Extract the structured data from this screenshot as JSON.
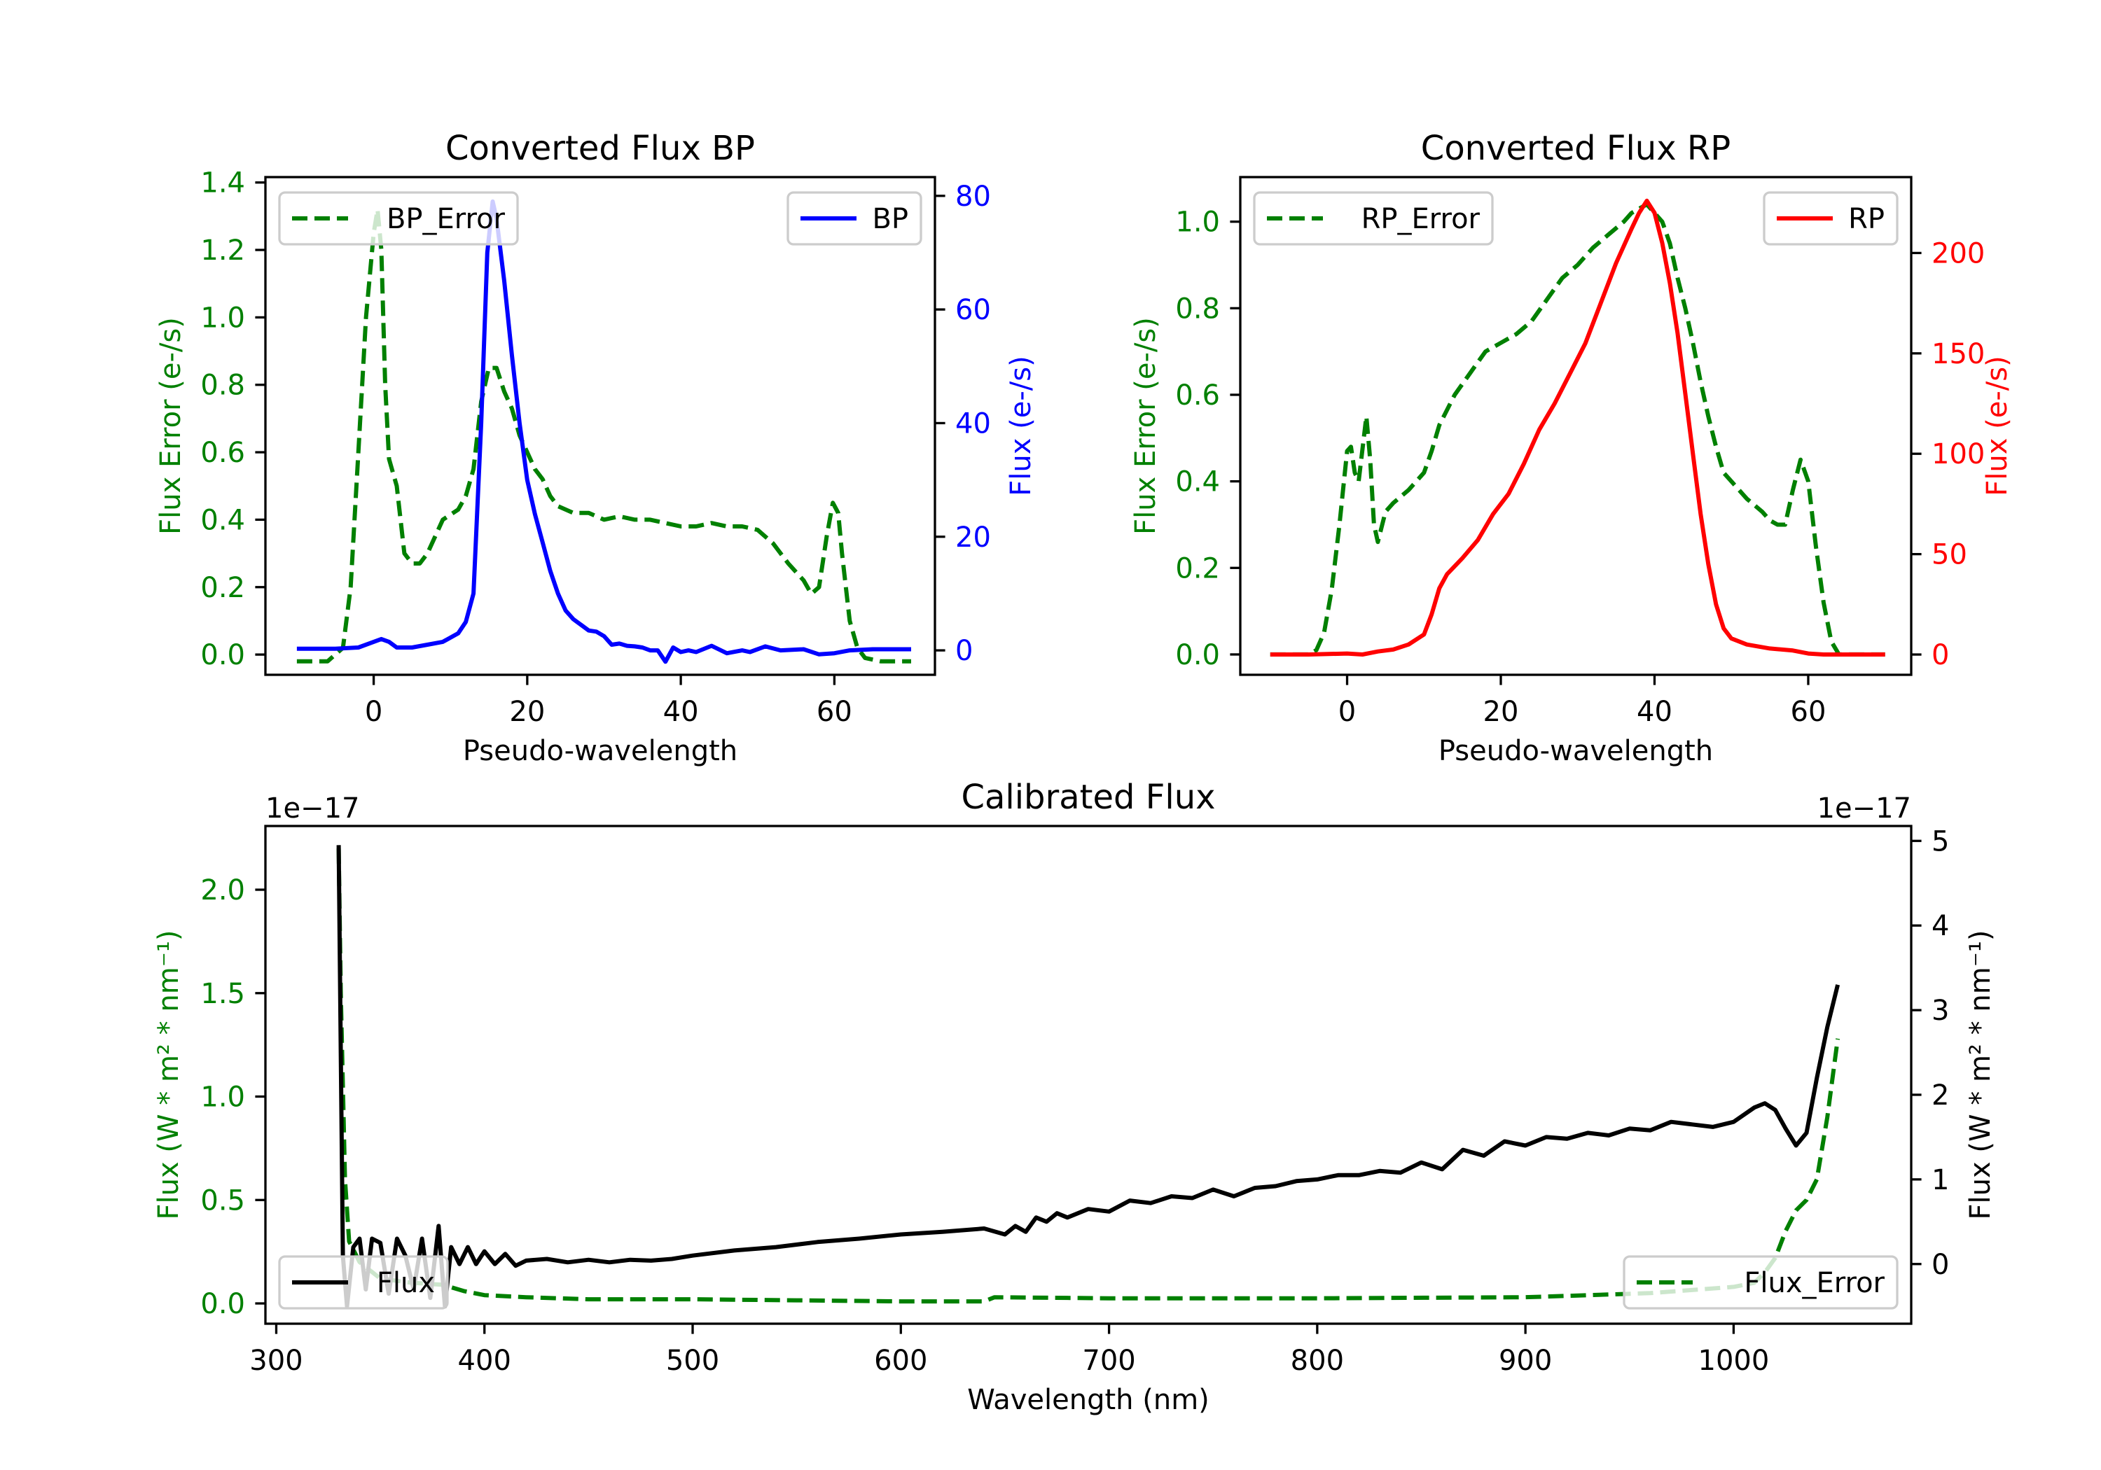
{
  "chart_data": [
    {
      "type": "line",
      "title": "Converted Flux BP",
      "xlabel": "Pseudo-wavelength",
      "ylabel_left": "Flux Error (e-/s)",
      "ylabel_right": "Flux (e-/s)",
      "xlim": [
        -14.1,
        73.1
      ],
      "ylim_left": [
        -0.06,
        1.416
      ],
      "ylim_right": [
        -4.3,
        83.3
      ],
      "xticks": [
        0,
        20,
        40,
        60
      ],
      "xtick_labels": [
        "0",
        "20",
        "40",
        "60"
      ],
      "yticks_left": [
        0.0,
        0.2,
        0.4,
        0.6,
        0.8,
        1.0,
        1.2,
        1.4
      ],
      "ytick_labels_left": [
        "0.0",
        "0.2",
        "0.4",
        "0.6",
        "0.8",
        "1.0",
        "1.2",
        "1.4"
      ],
      "yticks_right": [
        0,
        20,
        40,
        60,
        80
      ],
      "ytick_labels_right": [
        "0",
        "20",
        "40",
        "60",
        "80"
      ],
      "left_color": "#008000",
      "right_color": "#0000ff",
      "series": [
        {
          "name": "BP_Error",
          "axis": "left",
          "style": "dashed",
          "color": "#008000",
          "legend": "upper-left",
          "x": [
            -10,
            -6,
            -4,
            -3,
            -2,
            -1,
            0,
            0.5,
            1,
            1.5,
            2,
            3,
            4,
            5,
            6,
            7,
            8,
            9,
            11,
            12,
            13,
            14,
            15,
            16,
            17,
            18,
            19,
            20,
            21,
            22,
            23,
            24,
            26,
            28,
            30,
            32,
            34,
            36,
            38,
            40,
            42,
            44,
            46,
            48,
            50,
            52,
            54,
            56,
            57,
            58,
            59,
            59.8,
            60.5,
            61,
            62,
            63,
            64,
            66,
            70
          ],
          "y": [
            -0.02,
            -0.02,
            0.02,
            0.2,
            0.6,
            1.0,
            1.25,
            1.32,
            1.2,
            0.8,
            0.58,
            0.5,
            0.3,
            0.27,
            0.27,
            0.3,
            0.35,
            0.4,
            0.43,
            0.47,
            0.55,
            0.75,
            0.85,
            0.85,
            0.78,
            0.73,
            0.65,
            0.6,
            0.55,
            0.52,
            0.47,
            0.44,
            0.42,
            0.42,
            0.4,
            0.41,
            0.4,
            0.4,
            0.39,
            0.38,
            0.38,
            0.39,
            0.38,
            0.38,
            0.37,
            0.33,
            0.27,
            0.22,
            0.18,
            0.2,
            0.35,
            0.45,
            0.42,
            0.3,
            0.1,
            0.02,
            -0.01,
            -0.02,
            -0.02
          ]
        },
        {
          "name": "BP",
          "axis": "right",
          "style": "solid",
          "color": "#0000ff",
          "legend": "upper-right",
          "x": [
            -10,
            -5,
            -2,
            0,
            1,
            2,
            3,
            5,
            7,
            9,
            11,
            12,
            13,
            14,
            14.8,
            15.5,
            16,
            17,
            18,
            19,
            20,
            21,
            22,
            23,
            24,
            25,
            26,
            27,
            28,
            29,
            30,
            31,
            32,
            33,
            34,
            35,
            36,
            37,
            38,
            39,
            40,
            41,
            42,
            44,
            46,
            48,
            49,
            51,
            53,
            56,
            58,
            60,
            62,
            65,
            70
          ],
          "y": [
            0.3,
            0.3,
            0.5,
            1.5,
            2,
            1.5,
            0.5,
            0.5,
            1,
            1.5,
            3,
            5,
            10,
            40,
            70,
            79,
            76,
            65,
            52,
            40,
            30,
            24,
            19,
            14,
            10,
            7,
            5.5,
            4.5,
            3.5,
            3.3,
            2.5,
            1,
            1.2,
            0.8,
            0.7,
            0.5,
            0,
            0,
            -2,
            0.5,
            -0.3,
            0,
            -0.3,
            0.8,
            -0.5,
            0,
            -0.3,
            0.7,
            0,
            0.2,
            -0.7,
            -0.5,
            0,
            0.2,
            0.2
          ]
        }
      ]
    },
    {
      "type": "line",
      "title": "Converted Flux RP",
      "xlabel": "Pseudo-wavelength",
      "ylabel_left": "Flux Error (e-/s)",
      "ylabel_right": "Flux (e-/s)",
      "xlim": [
        -13.9,
        73.4
      ],
      "ylim_left": [
        -0.047,
        1.103
      ],
      "ylim_right": [
        -10.1,
        237.8
      ],
      "xticks": [
        0,
        20,
        40,
        60
      ],
      "xtick_labels": [
        "0",
        "20",
        "40",
        "60"
      ],
      "yticks_left": [
        0.0,
        0.2,
        0.4,
        0.6,
        0.8,
        1.0
      ],
      "ytick_labels_left": [
        "0.0",
        "0.2",
        "0.4",
        "0.6",
        "0.8",
        "1.0"
      ],
      "yticks_right": [
        0,
        50,
        100,
        150,
        200
      ],
      "ytick_labels_right": [
        "0",
        "50",
        "100",
        "150",
        "200"
      ],
      "left_color": "#008000",
      "right_color": "#ff0000",
      "series": [
        {
          "name": "RP_Error",
          "axis": "left",
          "style": "dashed",
          "color": "#008000",
          "legend": "upper-left",
          "x": [
            -10,
            -5,
            -4,
            -3,
            -2,
            -1,
            0,
            0.5,
            1,
            1.5,
            2.5,
            3,
            3.5,
            4,
            5,
            6,
            8,
            10,
            11,
            12,
            14,
            16,
            18,
            20,
            22,
            24,
            26,
            28,
            30,
            32,
            34,
            36,
            37,
            38,
            39,
            40,
            41,
            42,
            43,
            44,
            45,
            46,
            47,
            48,
            49,
            50,
            52,
            54,
            55,
            56,
            57,
            58,
            59,
            60,
            61,
            62,
            63,
            64,
            70
          ],
          "y": [
            0,
            0,
            0.01,
            0.05,
            0.15,
            0.3,
            0.47,
            0.48,
            0.42,
            0.4,
            0.55,
            0.45,
            0.3,
            0.26,
            0.33,
            0.35,
            0.38,
            0.42,
            0.47,
            0.53,
            0.6,
            0.65,
            0.7,
            0.72,
            0.74,
            0.77,
            0.82,
            0.87,
            0.9,
            0.94,
            0.97,
            1.0,
            1.02,
            1.03,
            1.04,
            1.02,
            1.0,
            0.95,
            0.87,
            0.8,
            0.72,
            0.63,
            0.55,
            0.48,
            0.42,
            0.4,
            0.36,
            0.33,
            0.31,
            0.3,
            0.3,
            0.38,
            0.45,
            0.4,
            0.25,
            0.12,
            0.03,
            0,
            0
          ]
        },
        {
          "name": "RP",
          "axis": "right",
          "style": "solid",
          "color": "#ff0000",
          "legend": "upper-right",
          "x": [
            -10,
            -5,
            0,
            2,
            4,
            6,
            8,
            10,
            11,
            12,
            13,
            15,
            17,
            19,
            21,
            23,
            25,
            27,
            29,
            31,
            33,
            35,
            37,
            38,
            39,
            40,
            41,
            42,
            43,
            44,
            45,
            46,
            47,
            48,
            49,
            50,
            52,
            55,
            58,
            60,
            62,
            70
          ],
          "y": [
            0,
            0,
            0.5,
            0,
            1.5,
            2.5,
            5,
            10,
            20,
            33,
            40,
            48,
            57,
            70,
            80,
            95,
            112,
            125,
            140,
            155,
            175,
            195,
            212,
            220,
            226,
            220,
            205,
            185,
            160,
            130,
            100,
            70,
            45,
            25,
            13,
            8,
            5,
            3,
            2,
            0.5,
            0,
            0
          ]
        }
      ]
    },
    {
      "type": "line",
      "title": "Calibrated Flux",
      "xlabel": "Wavelength (nm)",
      "ylabel_left": "Flux (W * m² * nm⁻¹)",
      "ylabel_right": "Flux (W * m² * nm⁻¹)",
      "offset_left": "1e−17",
      "offset_right": "1e−17",
      "xlim": [
        294.8,
        1085.3
      ],
      "ylim_left": [
        -0.098,
        2.308
      ],
      "ylim_right": [
        -0.705,
        5.176
      ],
      "xticks": [
        300,
        400,
        500,
        600,
        700,
        800,
        900,
        1000
      ],
      "xtick_labels": [
        "300",
        "400",
        "500",
        "600",
        "700",
        "800",
        "900",
        "1000"
      ],
      "yticks_left": [
        0.0,
        0.5,
        1.0,
        1.5,
        2.0
      ],
      "ytick_labels_left": [
        "0.0",
        "0.5",
        "1.0",
        "1.5",
        "2.0"
      ],
      "yticks_right": [
        0,
        1,
        2,
        3,
        4,
        5
      ],
      "ytick_labels_right": [
        "0",
        "1",
        "2",
        "3",
        "4",
        "5"
      ],
      "left_color": "#008000",
      "right_color": "#000000",
      "series": [
        {
          "name": "Flux_Error",
          "axis": "left",
          "style": "dashed",
          "color": "#008000",
          "legend": "lower-right",
          "x": [
            330,
            331,
            333,
            335,
            340,
            350,
            365,
            380,
            390,
            400,
            420,
            450,
            500,
            550,
            600,
            640,
            645,
            700,
            800,
            900,
            960,
            1000,
            1010,
            1015,
            1020,
            1025,
            1030,
            1035,
            1040,
            1045,
            1050
          ],
          "y": [
            2.2,
            1.5,
            0.6,
            0.3,
            0.2,
            0.12,
            0.1,
            0.09,
            0.06,
            0.04,
            0.03,
            0.02,
            0.02,
            0.015,
            0.01,
            0.01,
            0.03,
            0.025,
            0.025,
            0.03,
            0.05,
            0.08,
            0.1,
            0.15,
            0.22,
            0.35,
            0.45,
            0.5,
            0.6,
            0.9,
            1.28
          ]
        },
        {
          "name": "Flux",
          "axis": "right",
          "style": "solid",
          "color": "#000000",
          "legend": "lower-left",
          "x": [
            330,
            331,
            332,
            334,
            337,
            340,
            343,
            346,
            350,
            354,
            358,
            362,
            366,
            370,
            374,
            378,
            381,
            384,
            388,
            392,
            396,
            400,
            405,
            410,
            415,
            420,
            430,
            440,
            450,
            460,
            470,
            480,
            490,
            500,
            520,
            540,
            560,
            580,
            600,
            620,
            640,
            650,
            655,
            660,
            665,
            670,
            675,
            680,
            690,
            700,
            710,
            720,
            730,
            740,
            750,
            760,
            770,
            780,
            790,
            800,
            810,
            820,
            830,
            840,
            850,
            860,
            870,
            880,
            890,
            900,
            910,
            920,
            930,
            940,
            950,
            960,
            970,
            980,
            990,
            1000,
            1010,
            1015,
            1020,
            1025,
            1030,
            1035,
            1040,
            1045,
            1050
          ],
          "y": [
            4.95,
            2.5,
            0.1,
            -0.5,
            0.2,
            0.3,
            -0.3,
            0.3,
            0.25,
            -0.35,
            0.3,
            0.1,
            -0.3,
            0.3,
            -0.4,
            0.45,
            -0.5,
            0.2,
            0.0,
            0.2,
            0.0,
            0.15,
            0.0,
            0.12,
            -0.02,
            0.04,
            0.06,
            0.02,
            0.05,
            0.02,
            0.05,
            0.04,
            0.06,
            0.1,
            0.16,
            0.2,
            0.26,
            0.3,
            0.35,
            0.38,
            0.42,
            0.35,
            0.45,
            0.38,
            0.55,
            0.5,
            0.6,
            0.55,
            0.65,
            0.62,
            0.75,
            0.72,
            0.8,
            0.78,
            0.88,
            0.8,
            0.9,
            0.92,
            0.98,
            1.0,
            1.05,
            1.05,
            1.1,
            1.08,
            1.2,
            1.12,
            1.35,
            1.28,
            1.45,
            1.4,
            1.5,
            1.48,
            1.55,
            1.52,
            1.6,
            1.58,
            1.68,
            1.65,
            1.62,
            1.68,
            1.85,
            1.9,
            1.82,
            1.6,
            1.4,
            1.55,
            2.2,
            2.8,
            3.3
          ]
        }
      ]
    }
  ]
}
